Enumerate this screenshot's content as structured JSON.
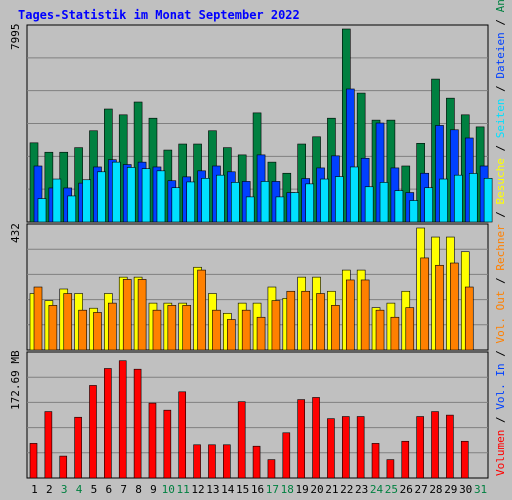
{
  "colors": {
    "background": "#c0c0c0",
    "frame": "#ffffff",
    "title": "#0000ff",
    "hits": "#008040",
    "files": "#0040ff",
    "pages": "#00e0ff",
    "visits": "#ffff00",
    "sites": "#ff8000",
    "kbytes": "#ff0000",
    "weekend_label": "#008040",
    "weekday_label": "#000000",
    "grid": "#808080"
  },
  "chart_data": {
    "type": "bar",
    "title": "Tages-Statistik im Monat September 2022",
    "categories": [
      "1",
      "2",
      "3",
      "4",
      "5",
      "6",
      "7",
      "8",
      "9",
      "10",
      "11",
      "12",
      "13",
      "14",
      "15",
      "16",
      "17",
      "18",
      "19",
      "20",
      "21",
      "22",
      "23",
      "24",
      "25",
      "26",
      "27",
      "28",
      "29",
      "30",
      "31"
    ],
    "weekend_days": [
      "3",
      "4",
      "10",
      "11",
      "17",
      "18",
      "24",
      "25",
      "31"
    ],
    "panels": [
      {
        "max_label": "7995",
        "ymax": 7995,
        "series": [
          {
            "key": "hits",
            "values": [
              3280,
              2890,
              2890,
              3080,
              3780,
              4680,
              4440,
              4970,
              4300,
              2980,
              3230,
              3230,
              3780,
              3080,
              2780,
              4520,
              2480,
              2020,
              3230,
              3530,
              4300,
              7995,
              5340,
              4220,
              4220,
              2320,
              3260,
              5920,
              5130,
              4440,
              3940
            ]
          },
          {
            "key": "files",
            "values": [
              2320,
              1410,
              1410,
              1610,
              2280,
              2580,
              2380,
              2480,
              2280,
              1710,
              1870,
              2120,
              2320,
              2080,
              1680,
              2780,
              1680,
              1220,
              1800,
              2240,
              2740,
              5510,
              2640,
              4100,
              2240,
              1220,
              2020,
              4000,
              3820,
              3480,
              2320
            ]
          },
          {
            "key": "pages",
            "values": [
              970,
              1780,
              1080,
              1750,
              2080,
              2480,
              2260,
              2210,
              2120,
              1420,
              1660,
              1810,
              1940,
              1640,
              1040,
              1680,
              1040,
              1220,
              1580,
              1780,
              1880,
              2280,
              1460,
              1640,
              1300,
              890,
              1420,
              1780,
              1940,
              2010,
              1810
            ]
          }
        ]
      },
      {
        "max_label": "432",
        "ymax": 432,
        "series": [
          {
            "key": "visits",
            "values": [
              200,
              175,
              216,
              200,
              148,
              200,
              258,
              258,
              166,
              166,
              166,
              293,
              200,
              130,
              166,
              166,
              223,
              183,
              258,
              258,
              208,
              283,
              283,
              150,
              166,
              208,
              432,
              400,
              400,
              348,
              0
            ]
          },
          {
            "key": "sites",
            "values": [
              223,
              158,
              200,
              141,
              133,
              166,
              250,
              250,
              141,
              158,
              158,
              283,
              141,
              108,
              141,
              116,
              175,
              208,
              208,
              200,
              158,
              248,
              248,
              141,
              116,
              150,
              326,
              300,
              308,
              223,
              0
            ]
          }
        ]
      },
      {
        "max_label": "172.69 MB",
        "ymax": 172.69,
        "series": [
          {
            "key": "kbytes",
            "values": [
              49.0,
              94.0,
              31.0,
              86.0,
              131.0,
              155.0,
              166.0,
              154.0,
              106.0,
              96.0,
              122.0,
              47.0,
              47.0,
              47.0,
              108.0,
              45.0,
              26.0,
              64.0,
              111.0,
              114.0,
              84.0,
              87.0,
              87.0,
              49.0,
              26.0,
              52.0,
              87.0,
              94.0,
              89.0,
              52.0,
              0
            ]
          }
        ]
      }
    ],
    "legend_right": [
      {
        "key": "kbytes",
        "text": "Volumen"
      },
      {
        "key": "files",
        "text": "Vol. In"
      },
      {
        "key": "sites",
        "text": "Vol. Out"
      },
      {
        "key": "sites",
        "text": "Rechner"
      },
      {
        "key": "visits",
        "text": "Besuche"
      },
      {
        "key": "pages",
        "text": "Seiten"
      },
      {
        "key": "files",
        "text": "Dateien"
      },
      {
        "key": "hits",
        "text": "Anfragen"
      }
    ],
    "legend_separator": "/"
  }
}
